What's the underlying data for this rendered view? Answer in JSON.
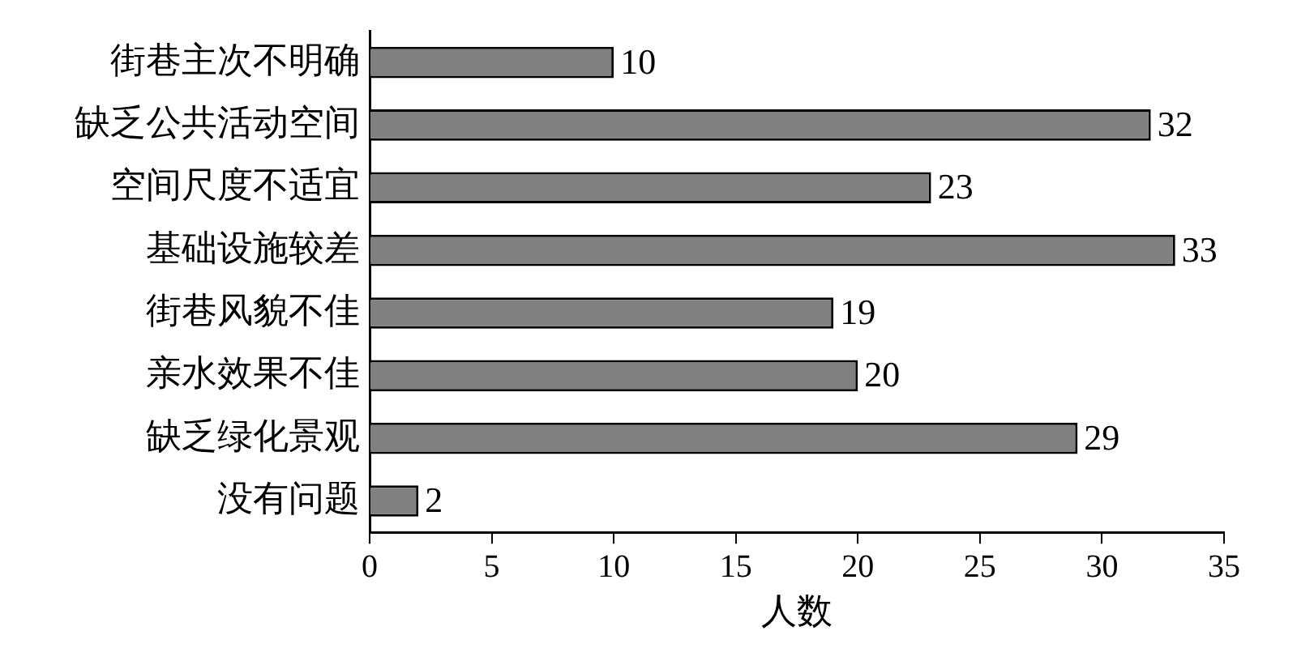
{
  "chart_data": {
    "type": "bar",
    "orientation": "horizontal",
    "xlabel": "人数",
    "categories": [
      "街巷主次不明确",
      "缺乏公共活动空间",
      "空间尺度不适宜",
      "基础设施较差",
      "街巷风貌不佳",
      "亲水效果不佳",
      "缺乏绿化景观",
      "没有问题"
    ],
    "values": [
      10,
      32,
      23,
      33,
      19,
      20,
      29,
      2
    ],
    "color": "#808080",
    "xlim": [
      0,
      35
    ],
    "xticks": [
      0,
      5,
      10,
      15,
      20,
      25,
      30,
      35
    ],
    "data_labels": true
  }
}
